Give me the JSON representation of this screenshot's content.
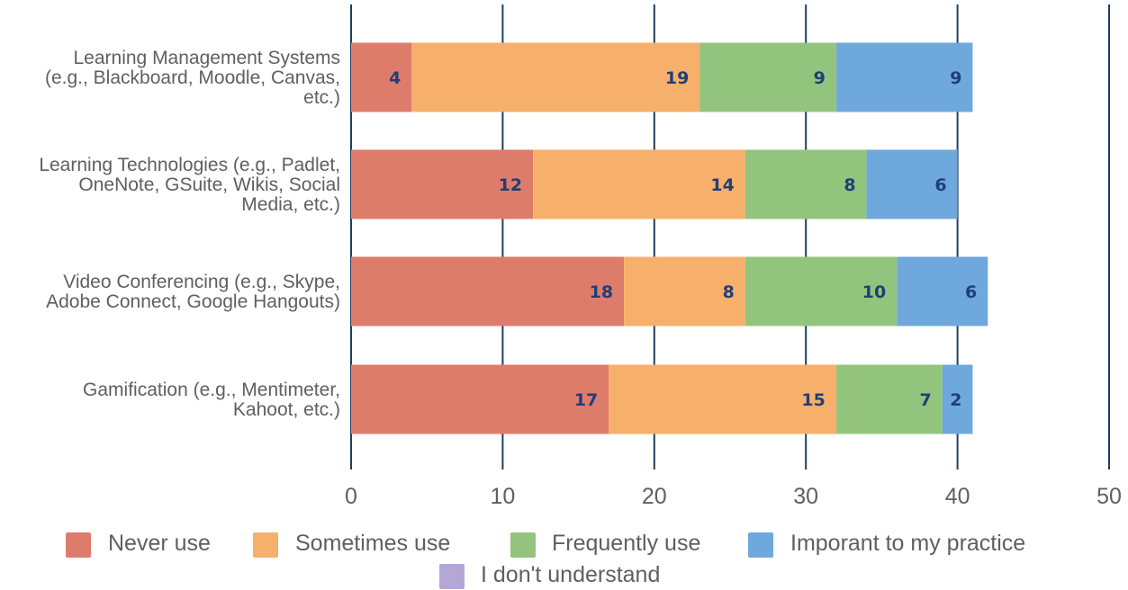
{
  "chart_data": {
    "type": "bar",
    "orientation": "horizontal",
    "stacked": true,
    "title": "",
    "xlabel": "",
    "ylabel": "",
    "xlim": [
      0,
      50
    ],
    "x_ticks": [
      0,
      10,
      20,
      30,
      40,
      50
    ],
    "grid": true,
    "legend_position": "bottom",
    "categories": [
      [
        "Learning Management Systems",
        "(e.g., Blackboard, Moodle, Canvas,",
        "etc.)"
      ],
      [
        "Learning Technologies (e.g., Padlet,",
        "OneNote, GSuite, Wikis, Social",
        "Media, etc.)"
      ],
      [
        "Video Conferencing (e.g., Skype,",
        "Adobe Connect, Google Hangouts)"
      ],
      [
        "Gamification (e.g., Mentimeter,",
        "Kahoot, etc.)"
      ]
    ],
    "series": [
      {
        "name": "Never use",
        "color": "#de7c6b",
        "values": [
          4,
          12,
          18,
          17
        ]
      },
      {
        "name": "Sometimes use",
        "color": "#f6b06b",
        "values": [
          19,
          14,
          8,
          15
        ]
      },
      {
        "name": "Frequently use",
        "color": "#93c47d",
        "values": [
          9,
          8,
          10,
          7
        ]
      },
      {
        "name": "Imporant to my practice",
        "color": "#6fa8dc",
        "values": [
          9,
          6,
          6,
          2
        ]
      },
      {
        "name": "I don't understand",
        "color": "#b4a7d6",
        "values": [
          0,
          0,
          0,
          0
        ]
      }
    ],
    "gridline_color": "#1f3f5f",
    "label_color": "#1f3f78"
  }
}
